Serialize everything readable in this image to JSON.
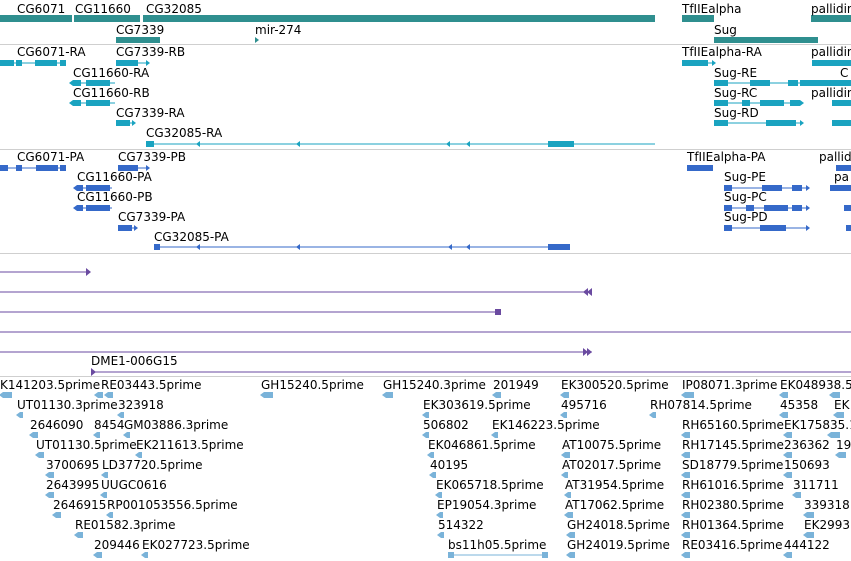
{
  "colors": {
    "gene": "#2f8f8f",
    "transcript": "#1aa3c0",
    "protein": "#3569c9",
    "alignment": "#6a4aa0",
    "est": "#7ab3d9",
    "separator": "#cfcfcf"
  },
  "tracks": {
    "genes": {
      "features": [
        {
          "label": "CG6071"
        },
        {
          "label": "CG11660"
        },
        {
          "label": "CG32085"
        },
        {
          "label": "CG7339"
        },
        {
          "label": "mir-274"
        },
        {
          "label": "TfIIEalpha"
        },
        {
          "label": "Sug"
        },
        {
          "label": "pallidin"
        }
      ]
    },
    "transcripts": {
      "features": [
        {
          "label": "CG6071-RA"
        },
        {
          "label": "CG7339-RB"
        },
        {
          "label": "CG11660-RA"
        },
        {
          "label": "CG11660-RB"
        },
        {
          "label": "CG7339-RA"
        },
        {
          "label": "CG32085-RA"
        },
        {
          "label": "TfIIEalpha-RA"
        },
        {
          "label": "Sug-RE"
        },
        {
          "label": "Sug-RC"
        },
        {
          "label": "Sug-RD"
        },
        {
          "label": "pallidin"
        },
        {
          "label": "pallidin"
        },
        {
          "label": "C"
        }
      ]
    },
    "proteins": {
      "features": [
        {
          "label": "CG6071-PA"
        },
        {
          "label": "CG7339-PB"
        },
        {
          "label": "CG11660-PA"
        },
        {
          "label": "CG11660-PB"
        },
        {
          "label": "CG7339-PA"
        },
        {
          "label": "CG32085-PA"
        },
        {
          "label": "TfIIEalpha-PA"
        },
        {
          "label": "Sug-PE"
        },
        {
          "label": "Sug-PC"
        },
        {
          "label": "Sug-PD"
        },
        {
          "label": "pallidin"
        },
        {
          "label": "pa"
        }
      ]
    },
    "alignments": {
      "features": [
        {
          "label": "DME1-006G15"
        }
      ]
    },
    "ests": {
      "features": [
        {
          "label": "K141203.5prime"
        },
        {
          "label": "RE03443.5prime"
        },
        {
          "label": "GH15240.5prime"
        },
        {
          "label": "GH15240.3prime"
        },
        {
          "label": "201949"
        },
        {
          "label": "EK300520.5prime"
        },
        {
          "label": "IP08071.3prime"
        },
        {
          "label": "EK048938.5"
        },
        {
          "label": "UT01130.3prime"
        },
        {
          "label": "323918"
        },
        {
          "label": "EK303619.5prime"
        },
        {
          "label": "495716"
        },
        {
          "label": "RH07814.5prime"
        },
        {
          "label": "45358"
        },
        {
          "label": "EK"
        },
        {
          "label": "2646090"
        },
        {
          "label": "8454"
        },
        {
          "label": "GM03886.3prime"
        },
        {
          "label": "506802"
        },
        {
          "label": "EK146223.5prime"
        },
        {
          "label": "RH65160.5prime"
        },
        {
          "label": "EK175835.1"
        },
        {
          "label": "UT01130.5prime"
        },
        {
          "label": "EK211613.5prime"
        },
        {
          "label": "EK046861.5prime"
        },
        {
          "label": "AT10075.5prime"
        },
        {
          "label": "RH17145.5prime"
        },
        {
          "label": "236362"
        },
        {
          "label": "19"
        },
        {
          "label": "3700695"
        },
        {
          "label": "LD37720.5prime"
        },
        {
          "label": "40195"
        },
        {
          "label": "AT02017.5prime"
        },
        {
          "label": "SD18779.5prime"
        },
        {
          "label": "150693"
        },
        {
          "label": "2643995"
        },
        {
          "label": "UUGC0616"
        },
        {
          "label": "EK065718.5prime"
        },
        {
          "label": "AT31954.5prime"
        },
        {
          "label": "RH61016.5prime"
        },
        {
          "label": "311711"
        },
        {
          "label": "2646915"
        },
        {
          "label": "RP001053556.5prime"
        },
        {
          "label": "EP19054.3prime"
        },
        {
          "label": "AT17062.5prime"
        },
        {
          "label": "RH02380.5prime"
        },
        {
          "label": "339318"
        },
        {
          "label": "RE01582.3prime"
        },
        {
          "label": "514322"
        },
        {
          "label": "GH24018.5prime"
        },
        {
          "label": "RH01364.5prime"
        },
        {
          "label": "EK2993"
        },
        {
          "label": "209446"
        },
        {
          "label": "EK027723.5prime"
        },
        {
          "label": "bs11h05.5prime"
        },
        {
          "label": "GH24019.5prime"
        },
        {
          "label": "RE03416.5prime"
        },
        {
          "label": "444122"
        }
      ]
    }
  }
}
